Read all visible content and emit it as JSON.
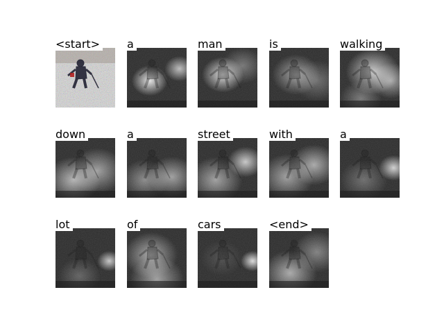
{
  "caption_words": [
    "<start>",
    "a",
    "man",
    "is",
    "walking",
    "down",
    "a",
    "street",
    "with",
    "a",
    "lot",
    "of",
    "cars",
    "<end>"
  ],
  "attention_maps": [
    {
      "word": "<start>",
      "kind": "original-photo"
    },
    {
      "word": "a",
      "peaks": [
        [
          0.38,
          0.55,
          0.3,
          0.9
        ],
        [
          0.88,
          0.35,
          0.25,
          0.7
        ]
      ]
    },
    {
      "word": "man",
      "peaks": [
        [
          0.42,
          0.45,
          0.35,
          0.85
        ],
        [
          0.75,
          0.3,
          0.35,
          0.35
        ]
      ]
    },
    {
      "word": "is",
      "peaks": [
        [
          0.45,
          0.45,
          0.4,
          0.55
        ],
        [
          0.8,
          0.55,
          0.4,
          0.3
        ]
      ]
    },
    {
      "word": "walking",
      "peaks": [
        [
          0.55,
          0.4,
          0.45,
          0.75
        ],
        [
          0.85,
          0.55,
          0.35,
          0.55
        ],
        [
          0.35,
          0.85,
          0.35,
          0.35
        ]
      ]
    },
    {
      "word": "down",
      "peaks": [
        [
          0.3,
          0.7,
          0.45,
          0.65
        ],
        [
          0.7,
          0.55,
          0.45,
          0.55
        ]
      ]
    },
    {
      "word": "a",
      "peaks": [
        [
          0.3,
          0.7,
          0.4,
          0.45
        ],
        [
          0.75,
          0.65,
          0.4,
          0.55
        ]
      ]
    },
    {
      "word": "street",
      "peaks": [
        [
          0.3,
          0.7,
          0.45,
          0.55
        ],
        [
          0.8,
          0.4,
          0.3,
          0.75
        ]
      ]
    },
    {
      "word": "with",
      "peaks": [
        [
          0.3,
          0.65,
          0.45,
          0.55
        ],
        [
          0.75,
          0.45,
          0.4,
          0.6
        ]
      ]
    },
    {
      "word": "a",
      "peaks": [
        [
          0.9,
          0.5,
          0.25,
          0.8
        ],
        [
          0.4,
          0.7,
          0.4,
          0.3
        ]
      ]
    },
    {
      "word": "lot",
      "peaks": [
        [
          0.9,
          0.55,
          0.2,
          0.75
        ],
        [
          0.4,
          0.8,
          0.35,
          0.25
        ]
      ]
    },
    {
      "word": "of",
      "peaks": [
        [
          0.4,
          0.45,
          0.45,
          0.6
        ],
        [
          0.5,
          0.85,
          0.45,
          0.55
        ]
      ]
    },
    {
      "word": "cars",
      "peaks": [
        [
          0.92,
          0.55,
          0.2,
          0.85
        ],
        [
          0.4,
          0.5,
          0.35,
          0.15
        ]
      ]
    },
    {
      "word": "<end>",
      "peaks": [
        [
          0.35,
          0.75,
          0.45,
          0.6
        ],
        [
          0.8,
          0.4,
          0.4,
          0.4
        ]
      ]
    }
  ],
  "colors": {
    "background": "#ffffff",
    "text": "#000000",
    "snow": "#d9d9d9",
    "player": "#2a2a3a"
  }
}
